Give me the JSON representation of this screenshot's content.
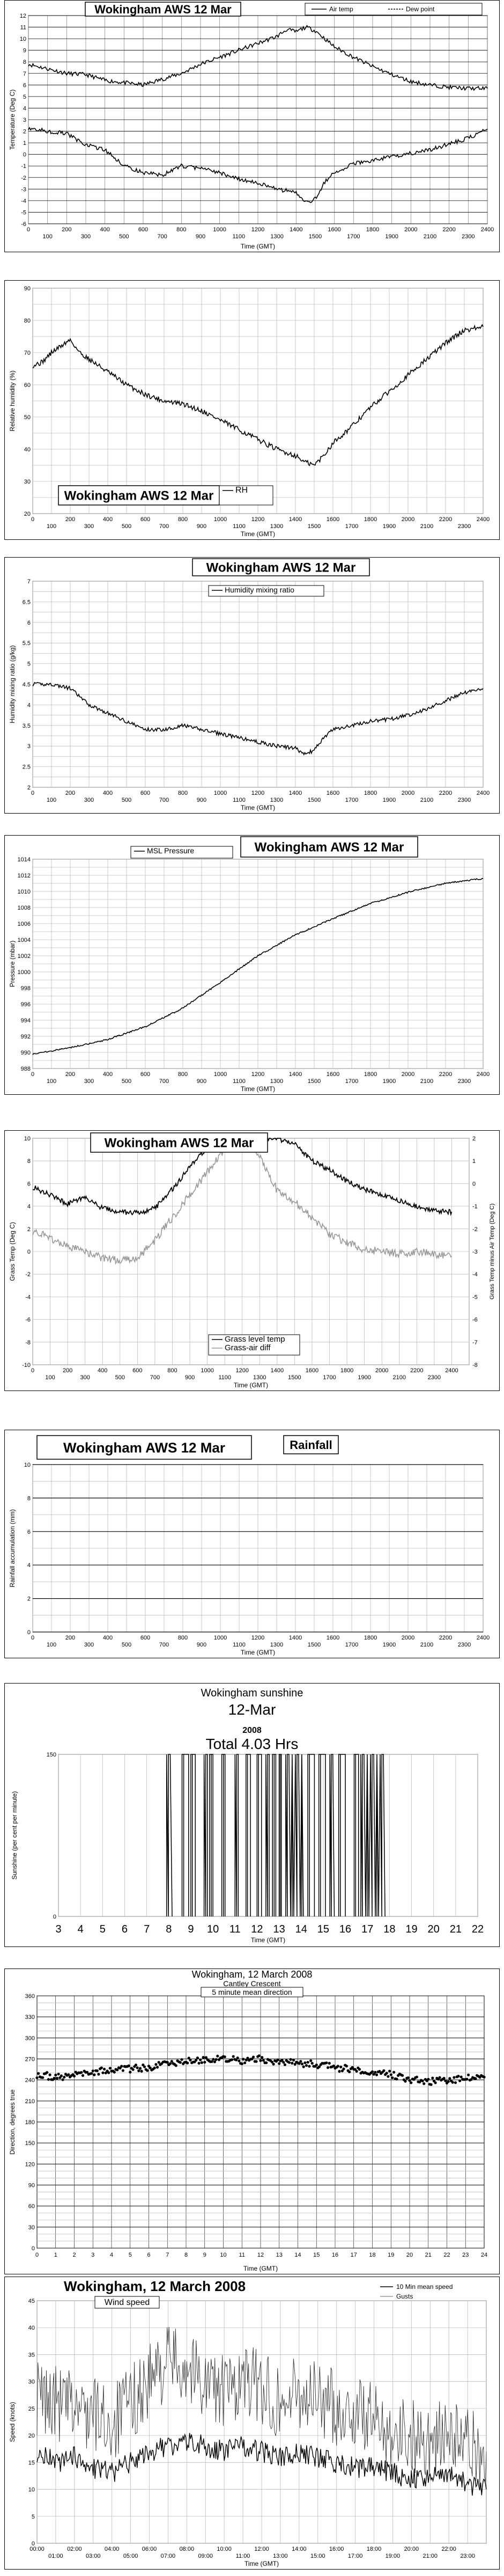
{
  "charts": [
    {
      "type": "line",
      "title": "Wokingham AWS 12 Mar",
      "xlabel": "Time (GMT)",
      "ylabel": "Temperature (Deg C)",
      "xlim": [
        0,
        2400
      ],
      "ylim": [
        -6,
        12
      ],
      "xticks_major": [
        "100",
        "300",
        "500",
        "700",
        "900",
        "1100",
        "1300",
        "1500",
        "1700",
        "1900",
        "2100",
        "2300"
      ],
      "xticks_minor": [
        "0",
        "200",
        "400",
        "600",
        "800",
        "1000",
        "1200",
        "1400",
        "1600",
        "1800",
        "2000",
        "2200",
        "2400"
      ],
      "yticks": [
        "-6",
        "-5",
        "-4",
        "-3",
        "-2",
        "-1",
        "0",
        "1",
        "2",
        "3",
        "4",
        "5",
        "6",
        "7",
        "8",
        "9",
        "10",
        "11",
        "12"
      ],
      "series": [
        {
          "name": "Air temp",
          "color": "#000000",
          "x": [
            0,
            100,
            200,
            300,
            400,
            500,
            600,
            700,
            800,
            900,
            1000,
            1100,
            1200,
            1300,
            1350,
            1400,
            1450,
            1500,
            1550,
            1600,
            1700,
            1800,
            1900,
            2000,
            2100,
            2200,
            2300,
            2400
          ],
          "y": [
            7.8,
            7.4,
            7.0,
            6.9,
            6.4,
            6.2,
            6.0,
            6.5,
            7.0,
            7.8,
            8.4,
            9.0,
            9.6,
            10.2,
            10.8,
            10.6,
            11.0,
            10.7,
            10.0,
            9.3,
            8.4,
            7.6,
            6.9,
            6.3,
            6.0,
            5.8,
            5.7,
            5.7
          ]
        },
        {
          "name": "Dew point",
          "color": "#000000",
          "x": [
            0,
            100,
            200,
            300,
            400,
            500,
            600,
            700,
            800,
            900,
            1000,
            1100,
            1200,
            1300,
            1400,
            1450,
            1500,
            1550,
            1600,
            1700,
            1800,
            1900,
            2000,
            2100,
            2200,
            2300,
            2400
          ],
          "y": [
            2.3,
            2.0,
            1.8,
            0.8,
            0.4,
            -1.0,
            -1.6,
            -1.8,
            -1.0,
            -1.2,
            -1.6,
            -2.1,
            -2.5,
            -3.0,
            -3.3,
            -4.2,
            -3.8,
            -2.4,
            -1.6,
            -0.8,
            -0.5,
            -0.2,
            0.1,
            0.4,
            0.9,
            1.4,
            2.2
          ]
        }
      ]
    },
    {
      "type": "line",
      "title": "Wokingham AWS 12 Mar",
      "xlabel": "Time (GMT)",
      "ylabel": "Relative humidity (%)",
      "xlim": [
        0,
        2400
      ],
      "ylim": [
        20,
        90
      ],
      "xticks_major": [
        "100",
        "300",
        "500",
        "700",
        "900",
        "1100",
        "1300",
        "1500",
        "1700",
        "1900",
        "2100",
        "2300"
      ],
      "xticks_minor": [
        "0",
        "200",
        "400",
        "600",
        "800",
        "1000",
        "1200",
        "1400",
        "1600",
        "1800",
        "2000",
        "2200",
        "2400"
      ],
      "yticks": [
        "20",
        "30",
        "40",
        "50",
        "60",
        "70",
        "80",
        "90"
      ],
      "series": [
        {
          "name": "RH",
          "color": "#000000",
          "x": [
            0,
            50,
            100,
            150,
            200,
            250,
            300,
            400,
            500,
            600,
            700,
            800,
            900,
            1000,
            1100,
            1200,
            1300,
            1400,
            1450,
            1500,
            1550,
            1600,
            1700,
            1800,
            1900,
            2000,
            2100,
            2200,
            2300,
            2400
          ],
          "y": [
            66,
            67,
            70,
            72,
            74,
            70,
            68,
            64,
            60,
            57,
            55,
            54,
            52,
            49,
            46,
            43,
            40,
            38,
            36,
            35,
            38,
            42,
            47,
            53,
            58,
            63,
            68,
            73,
            77,
            78
          ]
        }
      ]
    },
    {
      "type": "line",
      "title": "Wokingham AWS 12 Mar",
      "xlabel": "Time (GMT)",
      "ylabel": "Humidity mixing ratio (g/kg)",
      "xlim": [
        0,
        2400
      ],
      "ylim": [
        2,
        7
      ],
      "xticks_major": [
        "100",
        "300",
        "500",
        "700",
        "900",
        "1100",
        "1300",
        "1500",
        "1700",
        "1900",
        "2100",
        "2300"
      ],
      "xticks_minor": [
        "0",
        "200",
        "400",
        "600",
        "800",
        "1000",
        "1200",
        "1400",
        "1600",
        "1800",
        "2000",
        "2200",
        "2400"
      ],
      "yticks": [
        "2",
        "2.5",
        "3",
        "3.5",
        "4",
        "4.5",
        "5",
        "5.5",
        "6",
        "6.5",
        "7"
      ],
      "series": [
        {
          "name": "Humidity mixing ratio",
          "color": "#000000",
          "x": [
            0,
            100,
            200,
            300,
            400,
            500,
            600,
            700,
            800,
            900,
            1000,
            1100,
            1200,
            1300,
            1400,
            1450,
            1500,
            1550,
            1600,
            1700,
            1800,
            1900,
            2000,
            2100,
            2200,
            2300,
            2400
          ],
          "y": [
            4.5,
            4.5,
            4.4,
            4.0,
            3.8,
            3.6,
            3.4,
            3.4,
            3.5,
            3.4,
            3.3,
            3.2,
            3.1,
            3.0,
            2.95,
            2.8,
            2.9,
            3.2,
            3.4,
            3.5,
            3.6,
            3.65,
            3.75,
            3.9,
            4.1,
            4.3,
            4.4
          ]
        }
      ]
    },
    {
      "type": "line",
      "title": "Wokingham AWS 12 Mar",
      "xlabel": "Time (GMT)",
      "ylabel": "Pressure (mbar)",
      "xlim": [
        0,
        2400
      ],
      "ylim": [
        988,
        1014
      ],
      "xticks_major": [
        "100",
        "300",
        "500",
        "700",
        "900",
        "1100",
        "1300",
        "1500",
        "1700",
        "1900",
        "2100",
        "2300"
      ],
      "xticks_minor": [
        "0",
        "200",
        "400",
        "600",
        "800",
        "1000",
        "1200",
        "1400",
        "1600",
        "1800",
        "2000",
        "2200",
        "2400"
      ],
      "yticks": [
        "988",
        "990",
        "992",
        "994",
        "996",
        "998",
        "1000",
        "1002",
        "1004",
        "1006",
        "1008",
        "1010",
        "1012",
        "1014"
      ],
      "series": [
        {
          "name": "MSL Pressure",
          "color": "#000000",
          "x": [
            0,
            200,
            400,
            600,
            800,
            1000,
            1200,
            1400,
            1600,
            1800,
            2000,
            2200,
            2400
          ],
          "y": [
            989.8,
            990.6,
            991.6,
            993.2,
            995.5,
            998.7,
            1002.0,
            1004.6,
            1006.6,
            1008.5,
            1009.9,
            1011.0,
            1011.6
          ]
        }
      ]
    },
    {
      "type": "line",
      "title": "Wokingham AWS 12 Mar",
      "xlabel": "Time (GMT)",
      "ylabel": "Grass Temp (Deg C)",
      "ylabel2": "Grass Temp minus Air Temp (Deg C)",
      "xlim": [
        0,
        2500
      ],
      "ylim": [
        -10,
        10
      ],
      "ylim2": [
        -8,
        2
      ],
      "xticks_major": [
        "100",
        "300",
        "500",
        "700",
        "900",
        "1100",
        "1300",
        "1500",
        "1700",
        "1900",
        "2100",
        "2300"
      ],
      "xticks_minor": [
        "0",
        "200",
        "400",
        "600",
        "800",
        "1000",
        "1200",
        "1400",
        "1600",
        "1800",
        "2000",
        "2200",
        "2400"
      ],
      "yticks": [
        "-10",
        "-8",
        "-6",
        "-4",
        "-2",
        "0",
        "2",
        "4",
        "6",
        "8",
        "10"
      ],
      "yticks2": [
        "-8",
        "-7",
        "-6",
        "-5",
        "-4",
        "-3",
        "-2",
        "-1",
        "0",
        "1",
        "2"
      ],
      "series": [
        {
          "name": "Grass level temp",
          "color": "#000000",
          "x": [
            0,
            100,
            200,
            300,
            400,
            500,
            600,
            700,
            800,
            900,
            1000,
            1100,
            1200,
            1300,
            1400,
            1500,
            1600,
            1700,
            1800,
            1900,
            2000,
            2100,
            2200,
            2300,
            2400
          ],
          "y": [
            5.7,
            5.0,
            4.2,
            4.8,
            3.8,
            3.5,
            3.4,
            3.8,
            5.5,
            7.5,
            9.2,
            10.0,
            10.0,
            10.0,
            10.0,
            9.5,
            8.0,
            7.2,
            6.2,
            5.5,
            5.0,
            4.5,
            4.0,
            3.6,
            3.5
          ]
        },
        {
          "name": "Grass-air diff",
          "color": "#999999",
          "x": [
            0,
            100,
            200,
            300,
            400,
            500,
            600,
            700,
            800,
            900,
            1000,
            1100,
            1200,
            1300,
            1400,
            1500,
            1600,
            1700,
            1800,
            1900,
            2000,
            2100,
            2200,
            2300,
            2400
          ],
          "y": [
            -2.1,
            -2.4,
            -2.8,
            -3.0,
            -3.3,
            -3.4,
            -3.3,
            -2.5,
            -1.5,
            -0.5,
            0.5,
            1.5,
            2.0,
            1.2,
            -0.3,
            -0.8,
            -1.5,
            -2.2,
            -2.6,
            -2.9,
            -3.0,
            -3.1,
            -3.0,
            -3.1,
            -3.2
          ],
          "axis": "right"
        }
      ]
    },
    {
      "type": "line",
      "title": "Wokingham AWS 12 Mar",
      "label_box": "Rainfall",
      "xlabel": "Time (GMT)",
      "ylabel": "Rainfall accumulation (mm)",
      "xlim": [
        0,
        2400
      ],
      "ylim": [
        0,
        10
      ],
      "xticks_major": [
        "100",
        "300",
        "500",
        "700",
        "900",
        "1100",
        "1300",
        "1500",
        "1700",
        "1900",
        "2100",
        "2300"
      ],
      "xticks_minor": [
        "0",
        "200",
        "400",
        "600",
        "800",
        "1000",
        "1200",
        "1400",
        "1600",
        "1800",
        "2000",
        "2200",
        "2400"
      ],
      "yticks": [
        "0",
        "2",
        "4",
        "6",
        "8",
        "10"
      ],
      "series": []
    },
    {
      "type": "line",
      "title": "Wokingham sunshine",
      "subtitle": "12-Mar",
      "year": "2008",
      "total": "Total 4.03 Hrs",
      "xlabel": "Time (GMT)",
      "ylabel": "Sunshine (per cent per minute)",
      "xlim": [
        3,
        22
      ],
      "ylim": [
        0,
        150
      ],
      "xticks": [
        "3",
        "4",
        "5",
        "6",
        "7",
        "8",
        "9",
        "10",
        "11",
        "12",
        "13",
        "14",
        "15",
        "16",
        "17",
        "18",
        "19",
        "20",
        "21",
        "22"
      ],
      "yticks": [
        "0",
        "150"
      ],
      "sun_blocks": [
        [
          7.9,
          8.15
        ],
        [
          8.6,
          8.9
        ],
        [
          9.0,
          9.2
        ],
        [
          9.6,
          9.75
        ],
        [
          9.85,
          10.0
        ],
        [
          10.4,
          10.55
        ],
        [
          11.0,
          11.15
        ],
        [
          11.5,
          11.7
        ],
        [
          12.0,
          12.2
        ],
        [
          12.4,
          12.55
        ],
        [
          12.7,
          12.85
        ],
        [
          13.0,
          13.1
        ],
        [
          13.3,
          14.1
        ],
        [
          14.3,
          14.6
        ],
        [
          14.8,
          15.1
        ],
        [
          15.3,
          15.5
        ],
        [
          15.7,
          16.0
        ],
        [
          16.4,
          16.6
        ],
        [
          16.7,
          17.8
        ]
      ]
    },
    {
      "type": "scatter",
      "title": "Wokingham,  12 March 2008",
      "subtitle": "Cantley Crescent",
      "label_box": "5 minute mean direction",
      "xlabel": "Time (GMT)",
      "ylabel": "Direction, degrees true",
      "xlim": [
        0,
        24
      ],
      "ylim": [
        0,
        360
      ],
      "xticks": [
        "0",
        "1",
        "2",
        "3",
        "4",
        "5",
        "6",
        "7",
        "8",
        "9",
        "10",
        "11",
        "12",
        "13",
        "14",
        "15",
        "16",
        "17",
        "18",
        "19",
        "20",
        "21",
        "22",
        "23",
        "24"
      ],
      "yticks": [
        "0",
        "30",
        "60",
        "90",
        "120",
        "150",
        "180",
        "210",
        "240",
        "270",
        "300",
        "330",
        "360"
      ],
      "series": [
        {
          "name": "5 minute mean direction",
          "color": "#000000",
          "x": [
            0,
            1,
            2,
            3,
            4,
            5,
            6,
            7,
            8,
            9,
            10,
            11,
            12,
            13,
            14,
            15,
            16,
            17,
            18,
            19,
            20,
            21,
            22,
            23,
            24
          ],
          "y": [
            248,
            244,
            246,
            252,
            255,
            256,
            258,
            262,
            266,
            268,
            270,
            268,
            270,
            266,
            264,
            262,
            258,
            255,
            252,
            248,
            240,
            238,
            240,
            242,
            244
          ]
        }
      ]
    },
    {
      "type": "line",
      "title": "Wokingham,  12 March 2008",
      "label_box": "Wind speed",
      "xlabel": "Time (GMT)",
      "ylabel": "Speed (knots)",
      "xlim": [
        0,
        24
      ],
      "ylim": [
        0,
        45
      ],
      "xticks_top": [
        "00:00",
        "02:00",
        "04:00",
        "06:00",
        "08:00",
        "10:00",
        "12:00",
        "14:00",
        "16:00",
        "18:00",
        "20:00",
        "22:00"
      ],
      "xticks_bottom": [
        "01:00",
        "03:00",
        "05:00",
        "07:00",
        "09:00",
        "11:00",
        "13:00",
        "15:00",
        "17:00",
        "19:00",
        "21:00",
        "23:00"
      ],
      "yticks": [
        "0",
        "5",
        "10",
        "15",
        "20",
        "25",
        "30",
        "35",
        "40",
        "45"
      ],
      "series": [
        {
          "name": "10 Min mean speed",
          "color": "#000000",
          "x": [
            0,
            1,
            2,
            3,
            4,
            5,
            6,
            7,
            8,
            9,
            10,
            11,
            12,
            13,
            14,
            15,
            16,
            17,
            18,
            19,
            20,
            21,
            22,
            23,
            24
          ],
          "y": [
            17,
            15,
            16,
            14,
            13,
            15,
            17,
            18,
            19,
            18,
            17,
            18,
            17,
            16,
            17,
            16,
            15,
            14,
            14,
            13,
            12,
            12,
            13,
            11,
            10
          ]
        },
        {
          "name": "Gusts",
          "color": "#444444",
          "x": [
            0,
            1,
            2,
            3,
            4,
            5,
            6,
            7,
            8,
            9,
            10,
            11,
            12,
            13,
            14,
            15,
            16,
            17,
            18,
            19,
            20,
            21,
            22,
            23,
            24
          ],
          "y": [
            27,
            26,
            25,
            24,
            22,
            26,
            30,
            34,
            33,
            30,
            28,
            30,
            29,
            26,
            28,
            27,
            25,
            24,
            23,
            21,
            20,
            19,
            20,
            18,
            17
          ]
        }
      ]
    }
  ]
}
